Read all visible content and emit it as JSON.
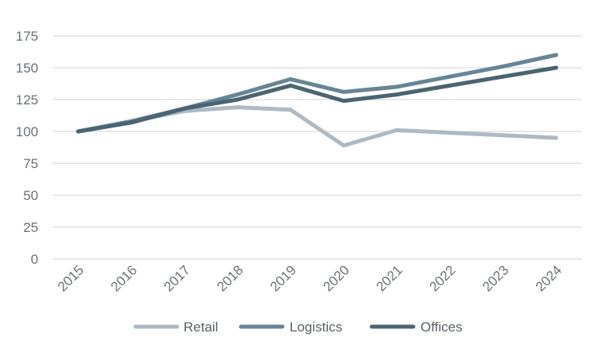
{
  "chart_data": {
    "type": "line",
    "title": "",
    "xlabel": "",
    "ylabel": "",
    "categories": [
      "2015",
      "2016",
      "2017",
      "2018",
      "2019",
      "2020",
      "2021",
      "2022",
      "2023",
      "2024"
    ],
    "ylim": [
      0,
      175
    ],
    "yticks": [
      0,
      25,
      50,
      75,
      100,
      125,
      150,
      175
    ],
    "grid": "horizontal",
    "legend_position": "bottom",
    "series": [
      {
        "name": "Retail",
        "color": "#adb9c3",
        "values": [
          100,
          108,
          116,
          119,
          117,
          89,
          101,
          99,
          97,
          95
        ]
      },
      {
        "name": "Logistics",
        "color": "#668597",
        "values": [
          100,
          108,
          118,
          129,
          141,
          131,
          135,
          143,
          151,
          160
        ]
      },
      {
        "name": "Offices",
        "color": "#4a6472",
        "values": [
          100,
          107,
          118,
          125,
          136,
          124,
          129,
          136,
          143,
          150
        ]
      }
    ]
  }
}
